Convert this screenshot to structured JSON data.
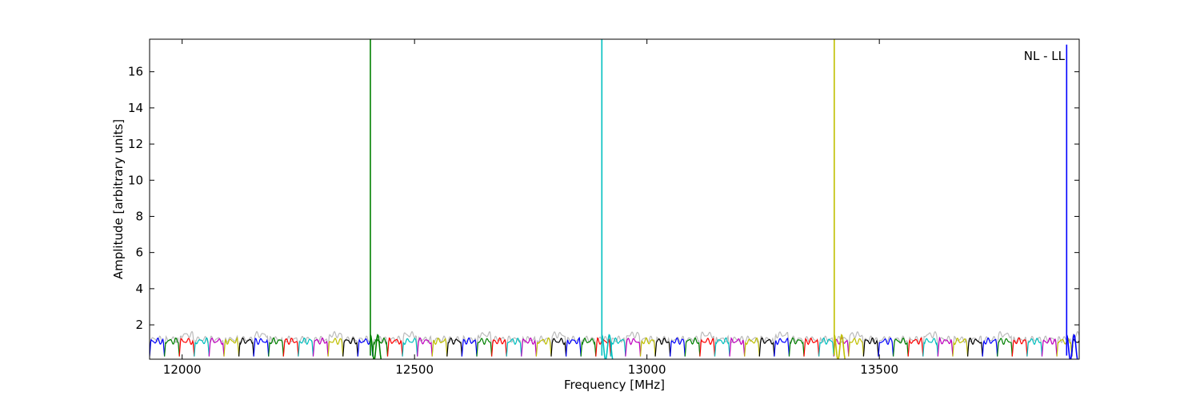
{
  "chart_data": {
    "type": "line",
    "title": "",
    "annotation": "NL - LL",
    "xlabel": "Frequency [MHz]",
    "ylabel": "Amplitude [arbitrary units]",
    "xlim": [
      11930,
      13930
    ],
    "ylim": [
      0.1,
      17.8
    ],
    "xticks": [
      12000,
      12500,
      13000,
      13500
    ],
    "yticks": [
      2,
      4,
      6,
      8,
      10,
      12,
      14,
      16
    ],
    "grid": false,
    "channel_width_mhz": 32,
    "channel_start_mhz": 11930,
    "channel_colors": [
      "#0000ff",
      "#008000",
      "#ff0000",
      "#00bfbf",
      "#bf00bf",
      "#bfbf00",
      "#000000"
    ],
    "background_series_color": "#bbbbbb",
    "spikes": [
      {
        "x": 12405,
        "y": 17.8,
        "color": "#008000"
      },
      {
        "x": 12903,
        "y": 17.8,
        "color": "#00bfbf"
      },
      {
        "x": 13403,
        "y": 17.8,
        "color": "#bfbf00"
      },
      {
        "x": 13903,
        "y": 17.5,
        "color": "#0000ff"
      }
    ]
  }
}
